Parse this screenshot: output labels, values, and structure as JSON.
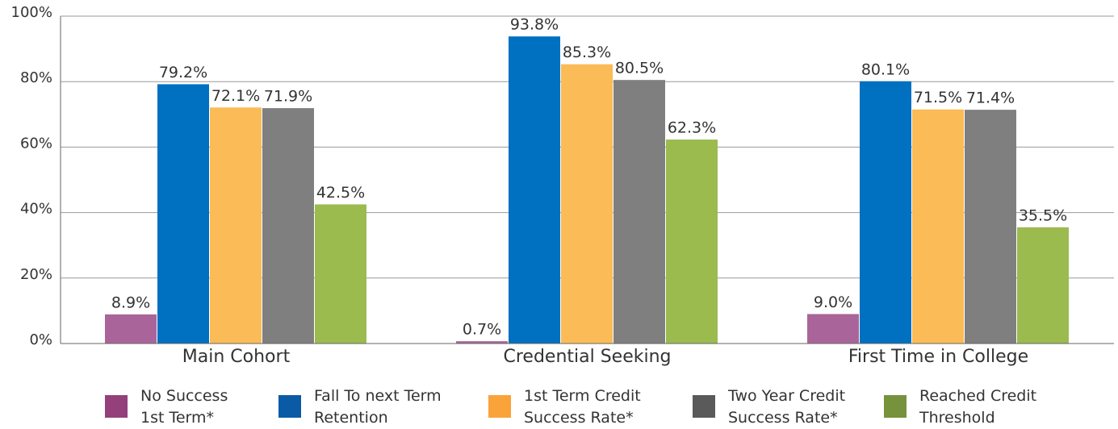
{
  "chart_data": {
    "type": "bar",
    "categories": [
      "Main Cohort",
      "Credential Seeking",
      "First Time in College"
    ],
    "series": [
      {
        "name": "No Success 1st Term*",
        "color": "#a9659a",
        "legend_color": "#93407b",
        "values": [
          8.9,
          0.7,
          9.0
        ],
        "value_labels": [
          "8.9%",
          "0.7%",
          "9.0%"
        ]
      },
      {
        "name": "Fall To next Term Retention",
        "color": "#0070c0",
        "legend_color": "#0a5aa5",
        "values": [
          79.2,
          93.8,
          80.1
        ],
        "value_labels": [
          "79.2%",
          "93.8%",
          "80.1%"
        ]
      },
      {
        "name": "1st Term Credit Success Rate*",
        "color": "#fbbb56",
        "legend_color": "#f9a33a",
        "values": [
          72.1,
          85.3,
          71.5
        ],
        "value_labels": [
          "72.1%",
          "85.3%",
          "71.5%"
        ]
      },
      {
        "name": "Two Year Credit Success Rate*",
        "color": "#7f7f7f",
        "legend_color": "#5a5a5a",
        "values": [
          71.9,
          80.5,
          71.4
        ],
        "value_labels": [
          "71.9%",
          "80.5%",
          "71.4%"
        ]
      },
      {
        "name": "Reached Credit Threshold",
        "color": "#9bbb4f",
        "legend_color": "#76923c",
        "values": [
          42.5,
          62.3,
          35.5
        ],
        "value_labels": [
          "42.5%",
          "62.3%",
          "35.5%"
        ]
      }
    ],
    "ylim": [
      0,
      100
    ],
    "yticks": [
      {
        "value": 0,
        "label": "0%"
      },
      {
        "value": 20,
        "label": "20%"
      },
      {
        "value": 40,
        "label": "40%"
      },
      {
        "value": 60,
        "label": "60%"
      },
      {
        "value": 80,
        "label": "80%"
      },
      {
        "value": 100,
        "label": "100%"
      }
    ],
    "grid": true
  }
}
